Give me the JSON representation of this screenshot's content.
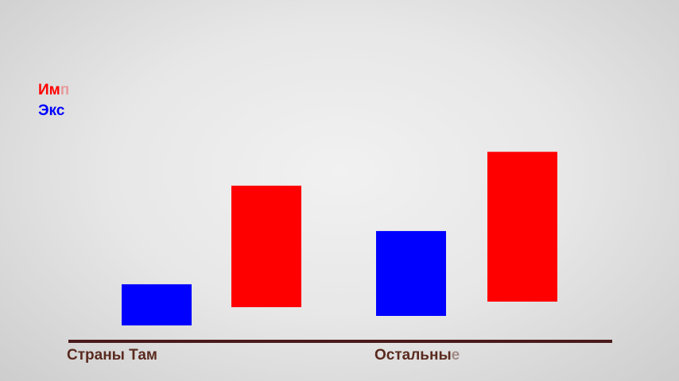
{
  "chart_data": {
    "type": "bar",
    "categories": [
      "Страны Там",
      "Остальные"
    ],
    "category_labels": [
      {
        "shown": "Страны Там",
        "faded": ""
      },
      {
        "shown": "Остальны",
        "faded": "е"
      }
    ],
    "series": [
      {
        "name": "Экс",
        "color": "#0000ff",
        "values": [
          64,
          132
        ]
      },
      {
        "name": "Имп",
        "color": "#ff0000",
        "values": [
          189,
          233
        ]
      }
    ],
    "legend": {
      "placement": "top-left",
      "items": [
        {
          "shown": "Им",
          "faded": "п",
          "color": "#ff0000"
        },
        {
          "shown": "Экс",
          "faded": "",
          "color": "#0000ff"
        }
      ]
    },
    "baseline_color": "#4a1a1a",
    "grid": false,
    "title": "",
    "xlabel": "",
    "ylabel": ""
  }
}
